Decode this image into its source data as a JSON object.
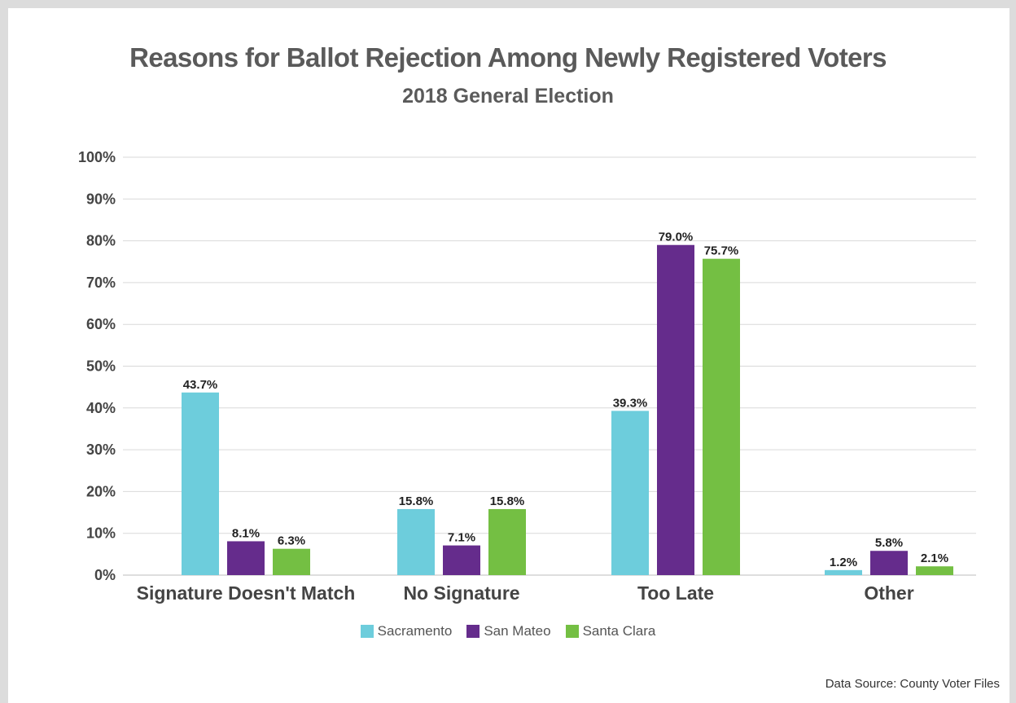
{
  "chart_data": {
    "type": "bar",
    "title": "Reasons for Ballot Rejection Among Newly Registered Voters",
    "subtitle": "2018 General Election",
    "categories": [
      "Signature Doesn't Match",
      "No Signature",
      "Too Late",
      "Other"
    ],
    "series": [
      {
        "name": "Sacramento",
        "color": "#6dcddc",
        "values": [
          43.7,
          15.8,
          39.3,
          1.2
        ],
        "labels": [
          "43.7%",
          "15.8%",
          "39.3%",
          "1.2%"
        ]
      },
      {
        "name": "San Mateo",
        "color": "#652c8c",
        "values": [
          8.1,
          7.1,
          79.0,
          5.8
        ],
        "labels": [
          "8.1%",
          "7.1%",
          "79.0%",
          "5.8%"
        ]
      },
      {
        "name": "Santa Clara",
        "color": "#74bf43",
        "values": [
          6.3,
          15.8,
          75.7,
          2.1
        ],
        "labels": [
          "6.3%",
          "15.8%",
          "75.7%",
          "2.1%"
        ]
      }
    ],
    "ylim": [
      0,
      100
    ],
    "yticks": [
      "0%",
      "10%",
      "20%",
      "30%",
      "40%",
      "50%",
      "60%",
      "70%",
      "80%",
      "90%",
      "100%"
    ],
    "grid": true,
    "legend_position": "bottom",
    "source": "Data Source: County Voter Files"
  }
}
